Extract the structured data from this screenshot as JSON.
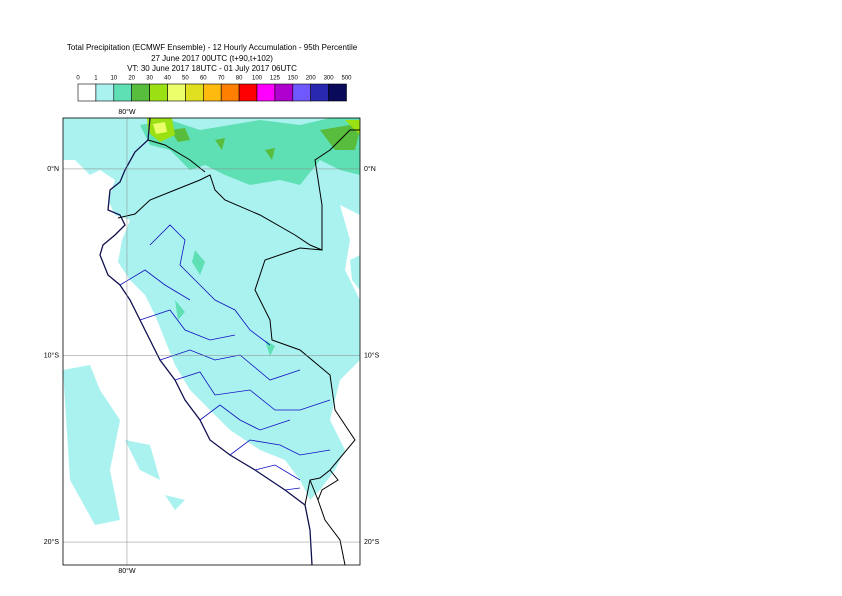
{
  "map": {
    "title": [
      "Total Precipitation (ECMWF Ensemble) - 12 Hourly Accumulation - 95th Percentile",
      "27 June 2017 00UTC (t+90,t+102)",
      "VT: 30 June 2017 18UTC - 01 July 2017 06UTC"
    ],
    "legend": {
      "levels": [
        0,
        1,
        10,
        20,
        30,
        40,
        50,
        60,
        70,
        80,
        100,
        125,
        150,
        200,
        300,
        500
      ],
      "colors": [
        "#ffffff",
        "#aaf2f0",
        "#5fe0b4",
        "#58bc3c",
        "#9ae012",
        "#eaff6a",
        "#e0e020",
        "#ffba10",
        "#ff8000",
        "#ff0000",
        "#ff00ff",
        "#b000d0",
        "#7058ff",
        "#2828b0",
        "#0a0a5a"
      ]
    },
    "latlim": [
      2.73,
      -21.23
    ],
    "lonlim": [
      -83.42,
      -67.54
    ],
    "lat_ticks": [
      {
        "value": 0,
        "label": "0°N"
      },
      {
        "value": -10,
        "label": "10°S"
      },
      {
        "value": -20,
        "label": "20°S"
      }
    ],
    "lon_ticks": [
      {
        "value": -80,
        "label": "80°W"
      }
    ]
  }
}
